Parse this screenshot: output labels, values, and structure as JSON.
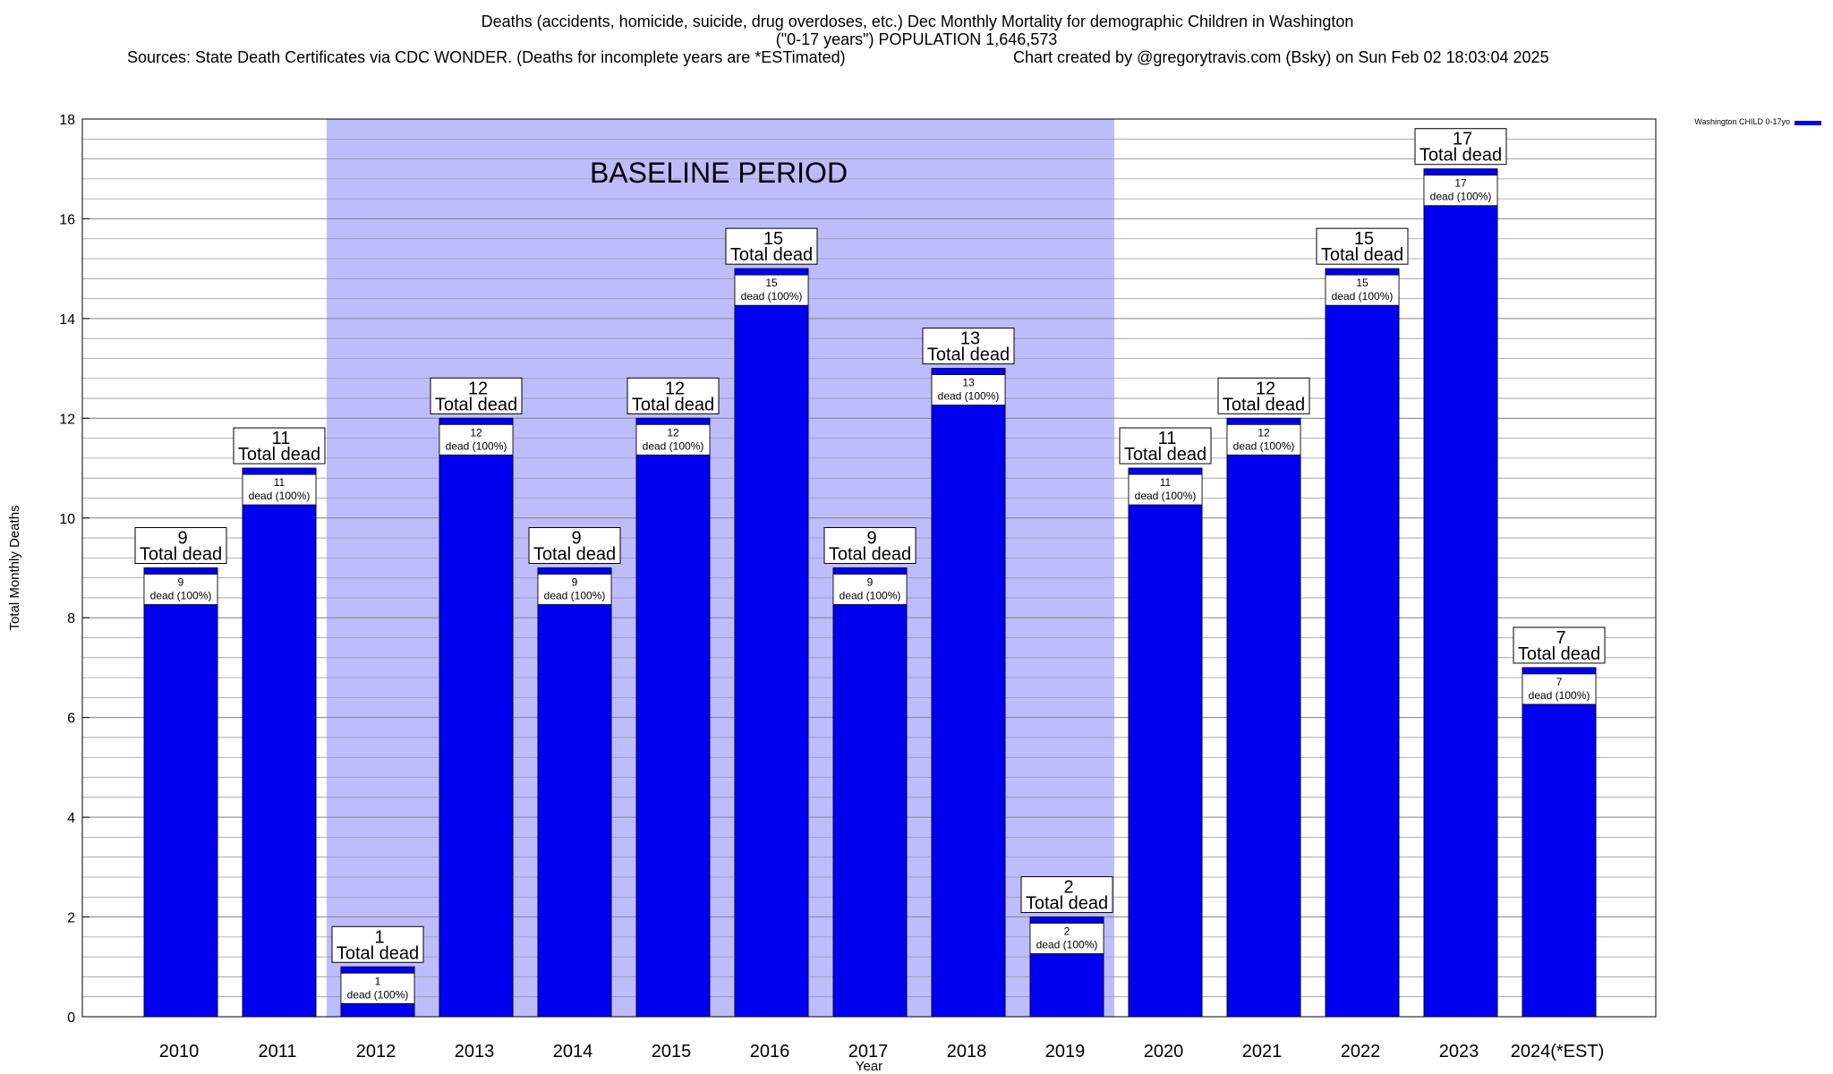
{
  "chart_data": {
    "type": "bar",
    "title": "Deaths (accidents, homicide, suicide, drug overdoses, etc.) Dec Monthly Mortality for demographic Children in Washington",
    "subtitle": "(\"0-17 years\") POPULATION 1,646,573",
    "sources": "Sources: State Death Certificates via CDC WONDER. (Deaths for incomplete years are *ESTimated)",
    "credit": "Chart created by @gregorytravis.com (Bsky) on Sun Feb 02 18:03:04 2025",
    "xlabel": "Year",
    "ylabel": "Total Monthly Deaths",
    "ylim": [
      0,
      18
    ],
    "yticks": [
      0,
      2,
      4,
      6,
      8,
      10,
      12,
      14,
      16,
      18
    ],
    "minor_grid_step": 0.4,
    "categories": [
      "2010",
      "2011",
      "2012",
      "2013",
      "2014",
      "2015",
      "2016",
      "2017",
      "2018",
      "2019",
      "2020",
      "2021",
      "2022",
      "2023",
      "2024(*EST)"
    ],
    "series": [
      {
        "name": "Washington CHILD 0-17yo",
        "color": "#0000ee",
        "values": [
          9,
          11,
          1,
          12,
          9,
          12,
          15,
          9,
          13,
          2,
          11,
          12,
          15,
          17,
          7
        ]
      }
    ],
    "baseline": {
      "label": "BASELINE PERIOD",
      "start": "2012",
      "end": "2019",
      "color": "#bdbdfd"
    },
    "top_label_suffix": "Total dead",
    "inner_label_suffix": "dead (100%)",
    "grid": true,
    "legend_position": "top-right"
  }
}
